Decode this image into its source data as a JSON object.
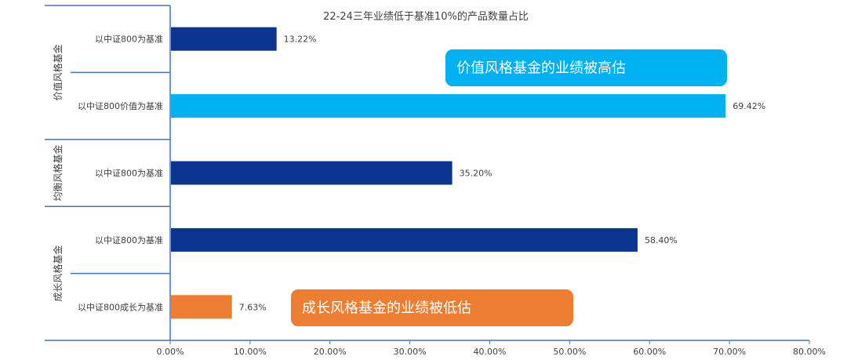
{
  "chart_data": {
    "type": "bar",
    "orientation": "horizontal",
    "title": "22-24三年业绩低于基准10%的产品数量占比",
    "xlim": [
      0,
      80
    ],
    "x_ticks": [
      "0.00%",
      "10.00%",
      "20.00%",
      "30.00%",
      "40.00%",
      "50.00%",
      "60.00%",
      "70.00%",
      "80.00%"
    ],
    "groups": [
      {
        "label": "价值风格基金",
        "bars": [
          {
            "category": "以中证800为基准",
            "value": 13.22,
            "value_label": "13.22%",
            "color": "#0B3591"
          },
          {
            "category": "以中证800价值为基准",
            "value": 69.42,
            "value_label": "69.42%",
            "color": "#00B0F0"
          }
        ]
      },
      {
        "label": "均衡风格基金",
        "bars": [
          {
            "category": "以中证800为基准",
            "value": 35.2,
            "value_label": "35.20%",
            "color": "#0B3591"
          }
        ]
      },
      {
        "label": "成长风格基金",
        "bars": [
          {
            "category": "以中证800为基准",
            "value": 58.4,
            "value_label": "58.40%",
            "color": "#0B3591"
          },
          {
            "category": "以中证800成长为基准",
            "value": 7.63,
            "value_label": "7.63%",
            "color": "#ED7D31"
          }
        ]
      }
    ],
    "annotations": [
      {
        "text": "价值风格基金的业绩被高估",
        "color": "#00B0F0"
      },
      {
        "text": "成长风格基金的业绩被低估",
        "color": "#ED7D31"
      }
    ],
    "grid": false,
    "legend": "none",
    "axis_color": "#4472C4"
  }
}
